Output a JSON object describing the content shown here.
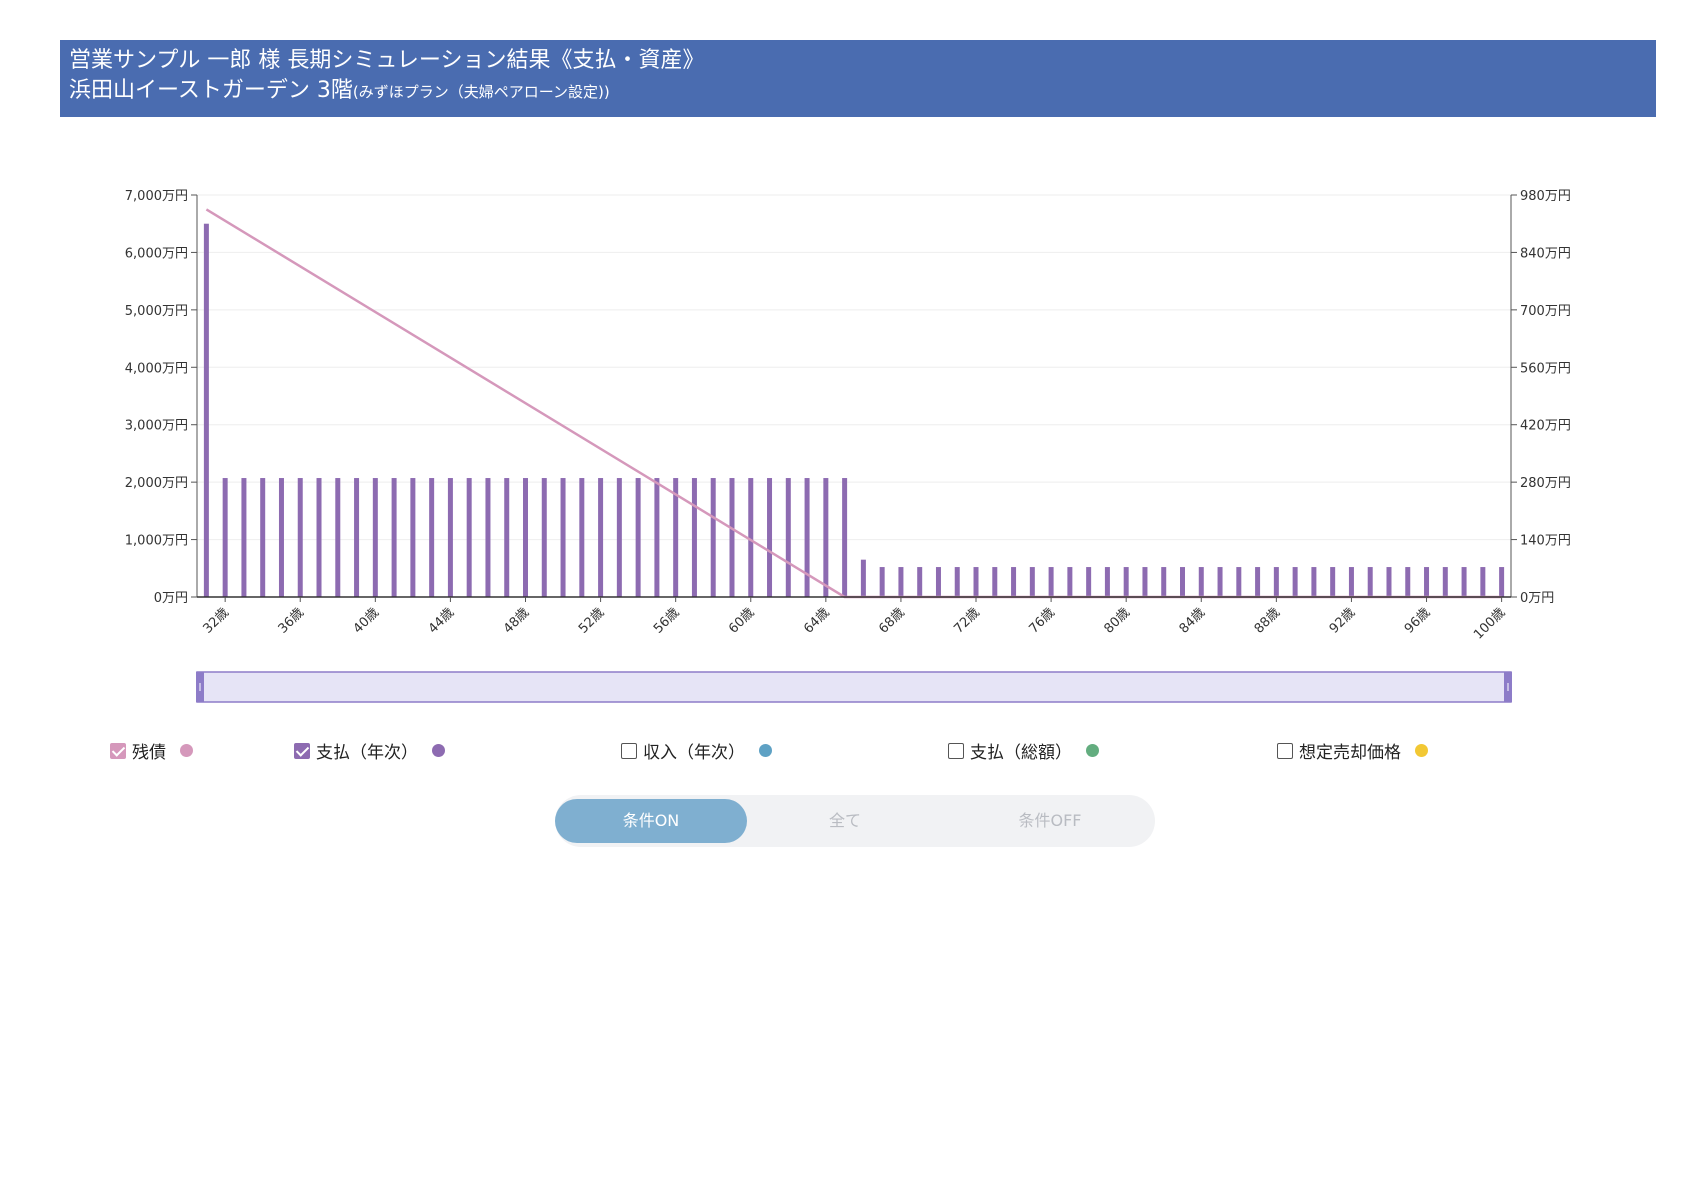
{
  "header": {
    "title_line1": "営業サンプル 一郎 様 長期シミュレーション結果《支払・資産》",
    "property": "浜田山イーストガーデン 3階",
    "plan": "(みずほプラン（夫婦ペアローン設定))"
  },
  "chart_data": {
    "type": "bar+line",
    "x_unit": "歳",
    "x_start": 31,
    "x_end": 100,
    "x_tick_labels": [
      "32歳",
      "36歳",
      "40歳",
      "44歳",
      "48歳",
      "52歳",
      "56歳",
      "60歳",
      "64歳",
      "68歳",
      "72歳",
      "76歳",
      "80歳",
      "84歳",
      "88歳",
      "92歳",
      "96歳",
      "100歳"
    ],
    "y_left": {
      "min": 0,
      "max": 7000,
      "ticks": [
        "0万円",
        "1,000万円",
        "2,000万円",
        "3,000万円",
        "4,000万円",
        "5,000万円",
        "6,000万円",
        "7,000万円"
      ]
    },
    "y_right": {
      "min": 0,
      "max": 980,
      "ticks": [
        "0万円",
        "140万円",
        "280万円",
        "420万円",
        "560万円",
        "700万円",
        "840万円",
        "980万円"
      ]
    },
    "series": [
      {
        "name": "残債",
        "kind": "line",
        "axis": "left",
        "color": "#d598bb",
        "points": [
          [
            31,
            6750
          ],
          [
            65,
            0
          ],
          [
            100,
            0
          ]
        ]
      },
      {
        "name": "支払（年次）",
        "kind": "bar",
        "axis": "right",
        "color": "#8d6bb1",
        "segments": [
          {
            "from": 31,
            "to": 31,
            "value": 910
          },
          {
            "from": 32,
            "to": 65,
            "value": 290
          },
          {
            "from": 66,
            "to": 66,
            "value": 91
          },
          {
            "from": 67,
            "to": 100,
            "value": 73
          }
        ]
      }
    ],
    "grid": true
  },
  "legend": [
    {
      "label": "残債",
      "checked": true,
      "box_color": "#d598bb",
      "dot_color": "#d598bb"
    },
    {
      "label": "支払（年次）",
      "checked": true,
      "box_color": "#8d6bb1",
      "dot_color": "#8d6bb1"
    },
    {
      "label": "収入（年次）",
      "checked": false,
      "box_color": "#555555",
      "dot_color": "#5ea1c4"
    },
    {
      "label": "支払（総額）",
      "checked": false,
      "box_color": "#555555",
      "dot_color": "#63ad7f"
    },
    {
      "label": "想定売却価格",
      "checked": false,
      "box_color": "#555555",
      "dot_color": "#f2c834"
    }
  ],
  "toggle": {
    "options": [
      "条件ON",
      "全て",
      "条件OFF"
    ],
    "active": 0
  }
}
